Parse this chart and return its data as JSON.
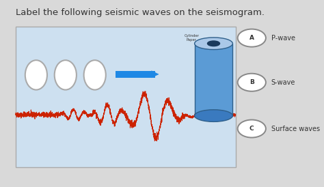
{
  "title": "Label the following seismic waves on the seismogram.",
  "title_fontsize": 9.5,
  "title_color": "#333333",
  "background_color": "#d9d9d9",
  "seismo_bg": "#cde0f0",
  "seismo_border": "#aaaaaa",
  "wave_color": "#cc2200",
  "baseline_color": "#cc2200",
  "legend_items": [
    {
      "label": "A",
      "text": "P-wave"
    },
    {
      "label": "B",
      "text": "S-wave"
    },
    {
      "label": "C",
      "text": "Surface waves"
    }
  ],
  "circle_color": "#ffffff",
  "circle_border": "#cccccc",
  "arrow_color": "#1e88e5",
  "cylinder_color_top": "#aac8e8",
  "cylinder_color_body": "#5b9bd5",
  "cylinder_color_bottom": "#3a7abf",
  "cylinder_color_inner": "#1a3a5c",
  "cylinder_edge": "#2e5f8a"
}
